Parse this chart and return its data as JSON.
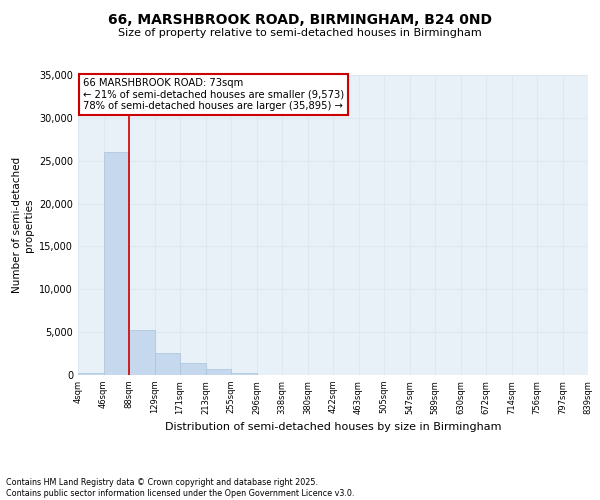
{
  "title": "66, MARSHBROOK ROAD, BIRMINGHAM, B24 0ND",
  "subtitle": "Size of property relative to semi-detached houses in Birmingham",
  "xlabel": "Distribution of semi-detached houses by size in Birmingham",
  "ylabel": "Number of semi-detached\nproperties",
  "bin_labels": [
    "4sqm",
    "46sqm",
    "88sqm",
    "129sqm",
    "171sqm",
    "213sqm",
    "255sqm",
    "296sqm",
    "338sqm",
    "380sqm",
    "422sqm",
    "463sqm",
    "505sqm",
    "547sqm",
    "589sqm",
    "630sqm",
    "672sqm",
    "714sqm",
    "756sqm",
    "797sqm",
    "839sqm"
  ],
  "values": [
    200,
    26000,
    5200,
    2600,
    1400,
    700,
    200,
    50,
    10,
    5,
    2,
    1,
    0,
    0,
    0,
    0,
    0,
    0,
    0,
    0
  ],
  "bar_color": "#c5d8ed",
  "bar_edge_color": "#a8c4d8",
  "grid_color": "#dde8f0",
  "bg_color": "#e8f0f8",
  "vline_color": "#cc0000",
  "vline_pos": 1.5,
  "annotation_title": "66 MARSHBROOK ROAD: 73sqm",
  "annotation_line1": "← 21% of semi-detached houses are smaller (9,573)",
  "annotation_line2": "78% of semi-detached houses are larger (35,895) →",
  "annotation_box_color": "#cc0000",
  "ylim": [
    0,
    35000
  ],
  "yticks": [
    0,
    5000,
    10000,
    15000,
    20000,
    25000,
    30000,
    35000
  ],
  "footnote1": "Contains HM Land Registry data © Crown copyright and database right 2025.",
  "footnote2": "Contains public sector information licensed under the Open Government Licence v3.0."
}
